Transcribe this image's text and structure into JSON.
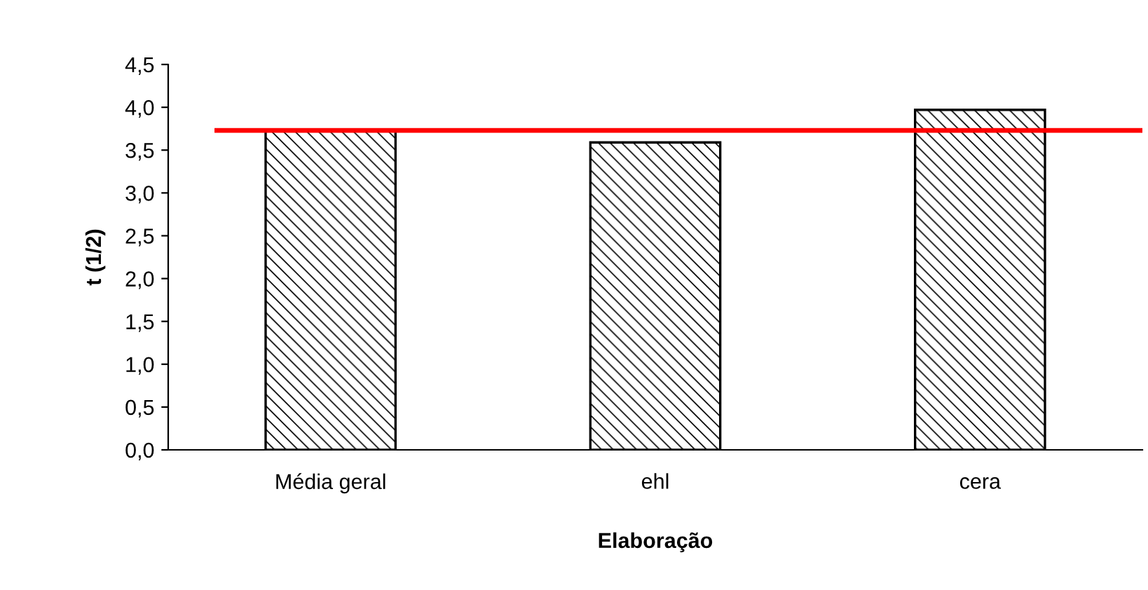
{
  "chart_data": {
    "type": "bar",
    "xlabel": "Elaboração",
    "ylabel": "t (1/2)",
    "categories": [
      "Média geral",
      "ehl",
      "cera"
    ],
    "values": [
      3.73,
      3.59,
      3.97
    ],
    "color": "#000000",
    "ylim": [
      0,
      4.5
    ],
    "yticks": [
      {
        "value": 0,
        "label": "0,0"
      },
      {
        "value": 0.5,
        "label": "0,5"
      },
      {
        "value": 1,
        "label": "1,0"
      },
      {
        "value": 1.5,
        "label": "1,5"
      },
      {
        "value": 2,
        "label": "2,0"
      },
      {
        "value": 2.5,
        "label": "2,5"
      },
      {
        "value": 3,
        "label": "3,0"
      },
      {
        "value": 3.5,
        "label": "3,5"
      },
      {
        "value": 4,
        "label": "4,0"
      },
      {
        "value": 4.5,
        "label": "4,5"
      }
    ],
    "ref_lines": [
      {
        "axis": "y",
        "value": 3.73,
        "color": "#ff0000",
        "line_style": "solid"
      }
    ],
    "grid": false,
    "legend": false
  }
}
